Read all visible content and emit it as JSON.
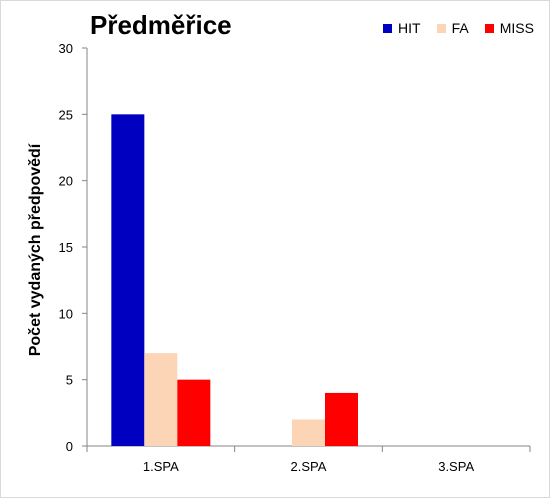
{
  "chart_data": {
    "type": "bar",
    "title": "Předměřice",
    "ylabel": "Počet vydaných předpovědí",
    "xlabel": "",
    "categories": [
      "1.SPA",
      "2.SPA",
      "3.SPA"
    ],
    "series": [
      {
        "name": "HIT",
        "values": [
          25,
          0,
          0
        ],
        "color": "#0000c0"
      },
      {
        "name": "FA",
        "values": [
          7,
          2,
          0
        ],
        "color": "#fbd5b5"
      },
      {
        "name": "MISS",
        "values": [
          5,
          4,
          0
        ],
        "color": "#ff0000"
      }
    ],
    "ylim": [
      0,
      30
    ],
    "yticks": [
      0,
      5,
      10,
      15,
      20,
      25,
      30
    ],
    "grid": false,
    "legend_position": "top-right"
  }
}
